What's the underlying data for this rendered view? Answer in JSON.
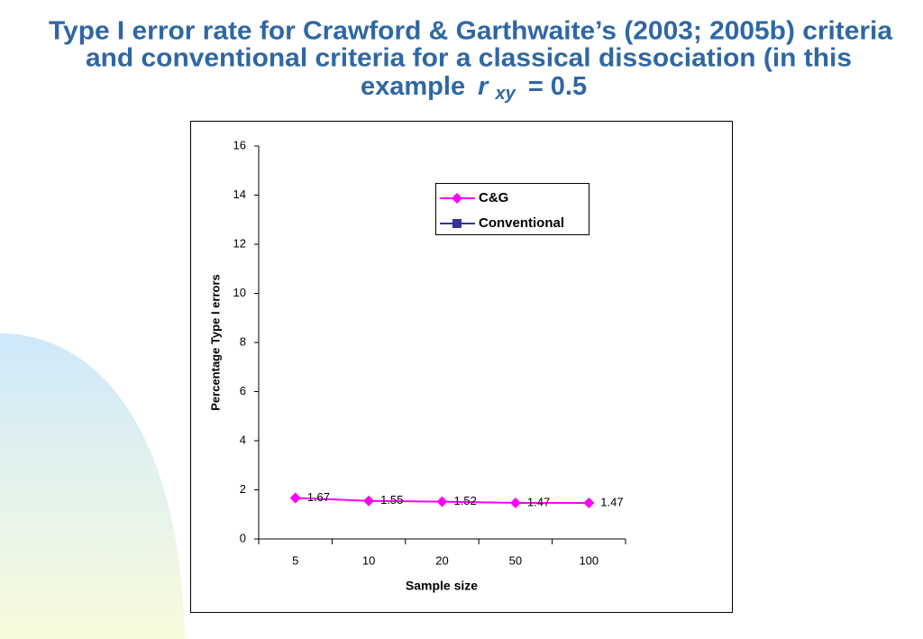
{
  "chart_data": {
    "type": "line",
    "title_lines": [
      "Type I error rate for Crawford & Garthwaite’s (2003; 2005b) criteria",
      "and conventional criteria for a classical dissociation (in this"
    ],
    "title_end": {
      "word": "example",
      "var": "r",
      "sub": "xy",
      "rest": "= 0.5"
    },
    "categories": [
      "5",
      "10",
      "20",
      "50",
      "100"
    ],
    "series": [
      {
        "name": "C&G",
        "color": "#ff00ff",
        "marker": "diamond",
        "values": [
          1.67,
          1.55,
          1.52,
          1.47,
          1.47
        ]
      },
      {
        "name": "Conventional",
        "color": "#333399",
        "marker": "square",
        "values": [
          null,
          null,
          null,
          null,
          null
        ]
      }
    ],
    "ylim": [
      0,
      16
    ],
    "yticks": [
      0,
      2,
      4,
      6,
      8,
      10,
      12,
      14,
      16
    ],
    "ylabel": "Percentage Type I errors",
    "xlabel": "Sample size",
    "grid": false,
    "data_labels": true,
    "legend": "upper right"
  }
}
